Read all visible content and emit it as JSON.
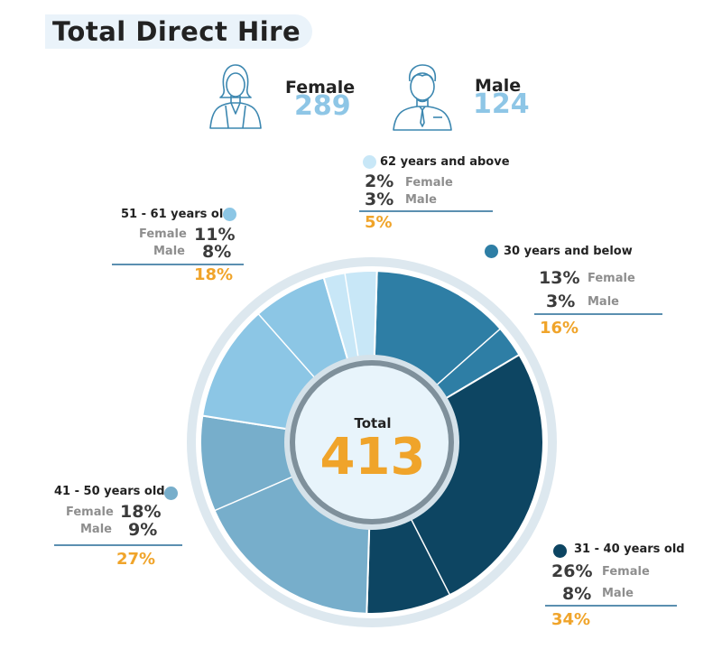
{
  "title": "Total Direct Hire",
  "gender": {
    "female": {
      "label": "Female",
      "value": "289",
      "icon": "female-person-icon"
    },
    "male": {
      "label": "Male",
      "value": "124",
      "icon": "male-person-icon"
    }
  },
  "center": {
    "label": "Total",
    "value": "413"
  },
  "colors": {
    "accent": "#f0a42a",
    "g30_below": "#2e7ea5",
    "g31_40": "#0d4562",
    "g41_50": "#77aecb",
    "g51_61": "#8cc6e5",
    "g62_above": "#c8e7f7",
    "gender_value": "#8ec6e6"
  },
  "groups": [
    {
      "key": "g30_below",
      "title": "30 years and below",
      "female_pct": "13%",
      "female_label": "Female",
      "male_pct": "3%",
      "male_label": "Male",
      "total_pct": "16%"
    },
    {
      "key": "g31_40",
      "title": "31 - 40 years old",
      "female_pct": "26%",
      "female_label": "Female",
      "male_pct": "8%",
      "male_label": "Male",
      "total_pct": "34%"
    },
    {
      "key": "g41_50",
      "title": "41 - 50 years old",
      "female_pct": "18%",
      "female_label": "Female",
      "male_pct": "9%",
      "male_label": "Male",
      "total_pct": "27%"
    },
    {
      "key": "g51_61",
      "title": "51 - 61 years old",
      "female_pct": "11%",
      "female_label": "Female",
      "male_pct": "8%",
      "male_label": "Male",
      "total_pct": "18%"
    },
    {
      "key": "g62_above",
      "title": "62 years and above",
      "female_pct": "2%",
      "female_label": "Female",
      "male_pct": "3%",
      "male_label": "Male",
      "total_pct": "5%"
    }
  ],
  "chart_data": {
    "type": "pie",
    "title": "Total Direct Hire",
    "total": 413,
    "slices": [
      {
        "label": "30 years and below",
        "female": 13,
        "male": 3,
        "total": 16
      },
      {
        "label": "31 - 40 years old",
        "female": 26,
        "male": 8,
        "total": 34
      },
      {
        "label": "41 - 50 years old",
        "female": 18,
        "male": 9,
        "total": 27
      },
      {
        "label": "51 - 61 years old",
        "female": 11,
        "male": 8,
        "total": 18
      },
      {
        "label": "62 years and above",
        "female": 2,
        "male": 3,
        "total": 5
      }
    ]
  }
}
